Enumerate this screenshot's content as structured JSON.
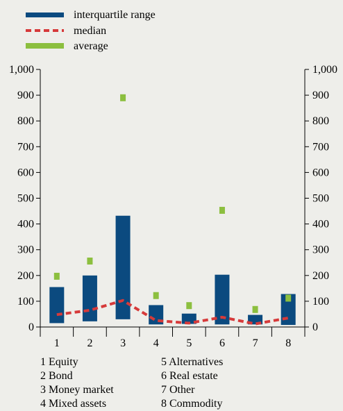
{
  "chart_data": {
    "type": "bar",
    "legend": {
      "placement": "top-left",
      "entries": [
        {
          "key": "iqr",
          "label": "interquartile range",
          "color": "#0b4a7f",
          "style": "bar"
        },
        {
          "key": "median",
          "label": "median",
          "color": "#d63a3a",
          "style": "dashed-line"
        },
        {
          "key": "average",
          "label": "average",
          "color": "#8cbf3f",
          "style": "marker"
        }
      ]
    },
    "ylim": [
      0,
      1000
    ],
    "yticks": [
      "0",
      "100",
      "200",
      "300",
      "400",
      "500",
      "600",
      "700",
      "800",
      "900",
      "1,000"
    ],
    "ytick_values": [
      0,
      100,
      200,
      300,
      400,
      500,
      600,
      700,
      800,
      900,
      1000
    ],
    "right_axis_mirrors_left": true,
    "categories": [
      "1",
      "2",
      "3",
      "4",
      "5",
      "6",
      "7",
      "8"
    ],
    "series": [
      {
        "name": "interquartile range",
        "type": "floating-bar",
        "low": [
          15,
          22,
          30,
          10,
          12,
          10,
          10,
          8
        ],
        "high": [
          155,
          200,
          432,
          85,
          52,
          203,
          47,
          128
        ]
      },
      {
        "name": "median",
        "type": "line",
        "values": [
          48,
          65,
          103,
          25,
          15,
          38,
          12,
          35
        ]
      },
      {
        "name": "average",
        "type": "marker",
        "values": [
          197,
          256,
          890,
          122,
          83,
          453,
          68,
          112
        ]
      }
    ],
    "category_key": [
      "1 Equity",
      "2 Bond",
      "3 Money market",
      "4 Mixed assets",
      "5 Alternatives",
      "6 Real estate",
      "7 Other",
      "8 Commodity"
    ],
    "grid": false
  }
}
